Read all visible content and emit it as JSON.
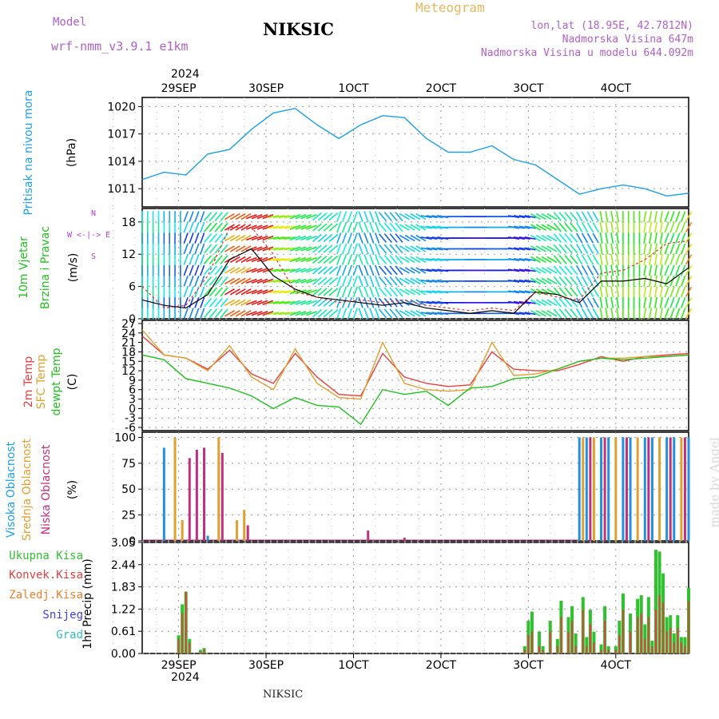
{
  "header": {
    "model_label": "Model",
    "model_name": "wrf-nmm_v3.9.1 e1km",
    "station": "NIKSIC",
    "meteogram": "Meteogram",
    "lonlat": "lon,lat (18.95E, 42.7812N)",
    "altitude": "Nadmorska Visina 647m",
    "model_altitude": "Nadmorska Visina u modelu 644.092m",
    "footer_station": "NIKSIC",
    "credit": "made by Angel"
  },
  "time_axis": {
    "top_year": "2024",
    "bottom_year": "2024",
    "labels": [
      "29SEP",
      "30SEP",
      "1OCT",
      "2OCT",
      "3OCT",
      "4OCT"
    ]
  },
  "colors": {
    "pressure": "#1ea0e6",
    "wind_speed": "#000000",
    "wind_gust": "#e03030",
    "temp_2m": "#e84040",
    "temp_sfc": "#e0a030",
    "dewpoint": "#20c020",
    "cloud_high": "#2090e0",
    "cloud_mid": "#e0a030",
    "cloud_low": "#c03080",
    "precip_total": "#30c030",
    "precip_conv": "#e04040",
    "precip_strat": "#f08030",
    "snow": "#4040e0",
    "hail": "#30c0c0"
  },
  "chart_data": [
    {
      "type": "line",
      "panel": "pressure",
      "ylabel_lines": [
        "Pritisak na nivou mora",
        "(hPa)"
      ],
      "ylim": [
        1009,
        1021
      ],
      "yticks": [
        1011,
        1014,
        1017,
        1020
      ],
      "x_hours": [
        0,
        6,
        12,
        18,
        24,
        30,
        36,
        42,
        48,
        54,
        60,
        66,
        72,
        78,
        84,
        90,
        96,
        102,
        108,
        114,
        120,
        126,
        132,
        138,
        144,
        150
      ],
      "series": [
        {
          "values": [
            1012.0,
            1012.8,
            1012.5,
            1014.8,
            1015.3,
            1017.5,
            1019.3,
            1019.8,
            1018.0,
            1016.5,
            1018.0,
            1019.0,
            1018.8,
            1016.5,
            1015.0,
            1015.0,
            1015.7,
            1014.2,
            1013.6,
            1012.0,
            1010.4,
            1011.0,
            1011.4,
            1011.0,
            1010.2,
            1010.5
          ]
        }
      ]
    },
    {
      "type": "line",
      "panel": "wind",
      "ylabel_lines": [
        "10m Vjetar",
        "Brzina i Pravac",
        "(m/s)"
      ],
      "compass_label": [
        "N",
        "W <-|-> E",
        "S"
      ],
      "ylim": [
        0,
        20.5
      ],
      "yticks": [
        0,
        6,
        12,
        18
      ],
      "x_hours": [
        0,
        6,
        12,
        18,
        24,
        30,
        36,
        42,
        48,
        54,
        60,
        66,
        72,
        78,
        84,
        90,
        96,
        102,
        108,
        114,
        120,
        126,
        132,
        138,
        144,
        150
      ],
      "series": [
        {
          "name": "speed",
          "values": [
            3.5,
            2.5,
            2.0,
            4.5,
            11.0,
            13.0,
            8.0,
            5.5,
            4.0,
            3.5,
            3.0,
            2.5,
            3.0,
            2.0,
            1.5,
            1.0,
            1.5,
            1.0,
            5.0,
            4.5,
            3.0,
            7.0,
            7.0,
            7.5,
            6.5,
            9.5
          ]
        },
        {
          "name": "gust",
          "values": [
            6.0,
            2.0,
            2.5,
            8.0,
            17.0,
            17.0,
            12.0,
            5.0,
            4.0,
            3.0,
            3.5,
            3.0,
            3.5,
            2.5,
            2.0,
            1.5,
            2.0,
            1.5,
            5.0,
            4.0,
            3.5,
            8.5,
            9.0,
            11.0,
            14.0,
            14.5
          ]
        }
      ],
      "wind_directions_deg": [
        180,
        180,
        200,
        220,
        240,
        250,
        260,
        250,
        230,
        200,
        160,
        140,
        120,
        100,
        90,
        90,
        90,
        100,
        120,
        140,
        150,
        170,
        180,
        190,
        200,
        210
      ]
    },
    {
      "type": "line",
      "panel": "temperature",
      "ylabel_lines": [
        "2m Temp",
        "SFC Temp",
        "dewpt Temp",
        "(C)"
      ],
      "ylim": [
        -7,
        28
      ],
      "yticks": [
        -6,
        -3,
        0,
        3,
        6,
        9,
        12,
        15,
        18,
        21,
        24,
        27
      ],
      "x_hours": [
        0,
        6,
        12,
        18,
        24,
        30,
        36,
        42,
        48,
        54,
        60,
        66,
        72,
        78,
        84,
        90,
        96,
        102,
        108,
        114,
        120,
        126,
        132,
        138,
        144,
        150
      ],
      "series": [
        {
          "name": "2m Temp",
          "values": [
            23.0,
            17.0,
            16.0,
            12.5,
            18.5,
            11.0,
            8.0,
            17.5,
            10.0,
            4.5,
            4.0,
            17.5,
            10.0,
            8.0,
            7.0,
            7.5,
            18.0,
            12.5,
            12.0,
            12.0,
            14.0,
            16.5,
            15.0,
            16.5,
            17.0,
            17.5
          ]
        },
        {
          "name": "SFC Temp",
          "values": [
            25.0,
            17.0,
            16.0,
            12.0,
            20.0,
            10.0,
            6.0,
            19.0,
            8.0,
            3.5,
            3.0,
            21.0,
            8.0,
            6.0,
            5.5,
            6.0,
            21.0,
            10.5,
            11.0,
            12.5,
            15.0,
            16.0,
            16.0,
            16.5,
            16.5,
            17.0
          ]
        },
        {
          "name": "dewpt Temp",
          "values": [
            17.0,
            15.5,
            9.5,
            8.0,
            6.5,
            4.0,
            0.0,
            3.5,
            1.0,
            0.5,
            -5.0,
            6.0,
            4.5,
            5.5,
            1.0,
            6.5,
            7.0,
            9.5,
            10.0,
            12.5,
            15.0,
            16.0,
            15.5,
            16.0,
            16.5,
            17.0
          ]
        }
      ]
    },
    {
      "type": "bar",
      "panel": "clouds",
      "ylabel_lines": [
        "Visoka Oblacnost",
        "Srednja Oblacnost",
        "Niska Oblacnost",
        "(%)"
      ],
      "ylim": [
        0,
        105
      ],
      "yticks": [
        0,
        25,
        50,
        75,
        100
      ],
      "series": [
        {
          "name": "Visoka Oblacnost",
          "bars_hours": [
            6,
            18,
            120,
            122,
            126,
            128,
            132,
            134,
            138,
            140,
            144,
            146,
            150
          ],
          "values": [
            90,
            5,
            100,
            100,
            100,
            100,
            100,
            100,
            100,
            100,
            100,
            100,
            100
          ]
        },
        {
          "name": "Srednja Oblacnost",
          "bars_hours": [
            9,
            11,
            21,
            26,
            28,
            121,
            124,
            130,
            136,
            142,
            148
          ],
          "values": [
            100,
            20,
            100,
            20,
            30,
            100,
            100,
            100,
            100,
            100,
            100
          ]
        },
        {
          "name": "Niska Oblacnost",
          "bars_hours": [
            13,
            15,
            17,
            22,
            29,
            62,
            72,
            123,
            127,
            133,
            139,
            145,
            149
          ],
          "values": [
            80,
            88,
            90,
            85,
            15,
            10,
            3,
            100,
            100,
            100,
            100,
            100,
            100
          ]
        }
      ]
    },
    {
      "type": "bar",
      "panel": "precipitation",
      "ylabel_lines": [
        "1hr Precip (mm)"
      ],
      "legend": [
        "Ukupna Kisa",
        "Konvek.Kisa",
        "Zaledj.Kisa",
        "Snijeg",
        "Grad"
      ],
      "ylim": [
        0,
        3.05
      ],
      "yticks": [
        0,
        0.61,
        1.22,
        1.83,
        2.44,
        3.05
      ],
      "bars_hours": [
        10,
        11,
        12,
        13,
        16,
        17,
        105,
        106,
        107,
        109,
        110,
        112,
        114,
        115,
        117,
        118,
        119,
        121,
        122,
        123,
        124,
        126,
        127,
        128,
        130,
        131,
        132,
        134,
        136,
        137,
        138,
        139,
        140,
        141,
        142,
        143,
        144,
        145,
        146,
        147,
        148,
        149,
        150
      ],
      "series": [
        {
          "name": "Ukupna Kisa",
          "values": [
            0.5,
            1.35,
            1.7,
            0.4,
            0.1,
            0.15,
            0.2,
            0.9,
            1.15,
            0.6,
            0.2,
            0.9,
            0.4,
            1.45,
            1.0,
            1.3,
            0.55,
            1.55,
            0.45,
            1.2,
            0.6,
            0.25,
            1.3,
            0.2,
            0.2,
            0.9,
            1.65,
            1.1,
            1.5,
            1.6,
            0.8,
            1.55,
            0.35,
            2.85,
            2.8,
            2.2,
            1.0,
            1.05,
            0.55,
            1.05,
            0.45,
            0.45,
            1.8
          ]
        },
        {
          "name": "Konvek.Kisa",
          "values": [
            0.4,
            1.1,
            1.7,
            0.3,
            0.05,
            0.1,
            0.1,
            0.5,
            0.6,
            0.2,
            0.1,
            0.6,
            0.2,
            1.0,
            0.6,
            0.9,
            0.2,
            1.2,
            0.2,
            0.8,
            0.3,
            0.1,
            0.9,
            0.1,
            0.1,
            0.5,
            1.2,
            0.6,
            1.0,
            1.1,
            0.4,
            1.0,
            0.2,
            1.2,
            1.6,
            1.4,
            0.6,
            0.7,
            0.3,
            0.7,
            0.3,
            0.2,
            1.45
          ]
        }
      ]
    }
  ]
}
